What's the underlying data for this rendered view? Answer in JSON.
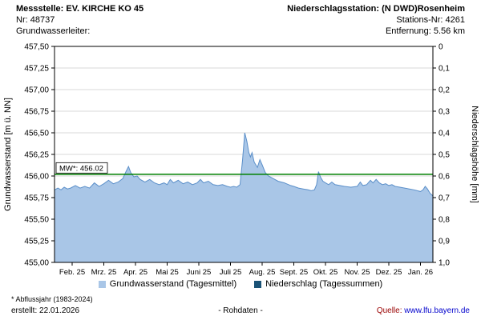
{
  "header": {
    "left": {
      "line1": "Messstelle: EV. KIRCHE KO 45",
      "line2": "Nr: 48737",
      "line3": "Grundwasserleiter:"
    },
    "right": {
      "line1": "Niederschlagsstation: (N DWD)Rosenheim",
      "line2": "Stations-Nr: 4261",
      "line3": "Entfernung: 5.56 km"
    }
  },
  "colors": {
    "area_fill": "#a9c6e7",
    "area_line": "#5b8fc9",
    "precipitation": "#1a5276",
    "mean_line": "#008000",
    "gridline": "#d8d8d8",
    "source_label": "#990000",
    "link": "#0000cc"
  },
  "chart_data": {
    "type": "area",
    "title": "",
    "ylabel_left": "Grundwasserstand [m ü. NN]",
    "ylabel_right": "Niederschlagshöhe [mm]",
    "ylim_left": [
      455.0,
      457.5
    ],
    "ylim_right_inverted": [
      0,
      1.0
    ],
    "grid": true,
    "legend_position": "bottom",
    "left_ticks": [
      "457,50",
      "457,25",
      "457,00",
      "456,75",
      "456,50",
      "456,25",
      "456,00",
      "455,75",
      "455,50",
      "455,25",
      "455,00"
    ],
    "right_ticks": [
      "0",
      "0,1",
      "0,2",
      "0,3",
      "0,4",
      "0,5",
      "0,6",
      "0,7",
      "0,8",
      "0,9",
      "1,0"
    ],
    "x_ticks": [
      "Feb. 25",
      "Mrz. 25",
      "Apr. 25",
      "Mai 25",
      "Juni 25",
      "Juli 25",
      "Aug. 25",
      "Sept. 25",
      "Okt. 25",
      "Nov. 25",
      "Dez. 25",
      "Jan. 26"
    ],
    "x_unit": "month ticks, 0 = Feb. 25",
    "reference_line": {
      "label": "MW*: 456.02",
      "value": 456.02
    },
    "series": [
      {
        "name": "Grundwasserstand (Tagesmittel)",
        "points": [
          [
            -0.55,
            455.84
          ],
          [
            -0.45,
            455.86
          ],
          [
            -0.35,
            455.84
          ],
          [
            -0.25,
            455.87
          ],
          [
            -0.15,
            455.85
          ],
          [
            -0.05,
            455.86
          ],
          [
            0.1,
            455.89
          ],
          [
            0.25,
            455.86
          ],
          [
            0.4,
            455.88
          ],
          [
            0.55,
            455.86
          ],
          [
            0.7,
            455.92
          ],
          [
            0.85,
            455.88
          ],
          [
            1.0,
            455.91
          ],
          [
            1.15,
            455.95
          ],
          [
            1.3,
            455.91
          ],
          [
            1.45,
            455.93
          ],
          [
            1.6,
            455.97
          ],
          [
            1.7,
            456.05
          ],
          [
            1.78,
            456.11
          ],
          [
            1.85,
            456.04
          ],
          [
            1.95,
            455.99
          ],
          [
            2.05,
            456.0
          ],
          [
            2.15,
            455.96
          ],
          [
            2.3,
            455.93
          ],
          [
            2.45,
            455.96
          ],
          [
            2.6,
            455.92
          ],
          [
            2.75,
            455.9
          ],
          [
            2.9,
            455.92
          ],
          [
            3.0,
            455.9
          ],
          [
            3.1,
            455.96
          ],
          [
            3.2,
            455.92
          ],
          [
            3.35,
            455.95
          ],
          [
            3.5,
            455.91
          ],
          [
            3.65,
            455.93
          ],
          [
            3.8,
            455.9
          ],
          [
            3.95,
            455.92
          ],
          [
            4.05,
            455.96
          ],
          [
            4.15,
            455.92
          ],
          [
            4.3,
            455.94
          ],
          [
            4.45,
            455.9
          ],
          [
            4.6,
            455.89
          ],
          [
            4.75,
            455.9
          ],
          [
            4.9,
            455.88
          ],
          [
            5.0,
            455.87
          ],
          [
            5.1,
            455.88
          ],
          [
            5.2,
            455.87
          ],
          [
            5.3,
            455.9
          ],
          [
            5.38,
            456.18
          ],
          [
            5.45,
            456.5
          ],
          [
            5.52,
            456.4
          ],
          [
            5.58,
            456.27
          ],
          [
            5.63,
            456.22
          ],
          [
            5.68,
            456.27
          ],
          [
            5.75,
            456.16
          ],
          [
            5.85,
            456.1
          ],
          [
            5.93,
            456.19
          ],
          [
            6.0,
            456.13
          ],
          [
            6.1,
            456.04
          ],
          [
            6.2,
            456.0
          ],
          [
            6.35,
            455.97
          ],
          [
            6.5,
            455.94
          ],
          [
            6.7,
            455.92
          ],
          [
            6.9,
            455.89
          ],
          [
            7.0,
            455.88
          ],
          [
            7.15,
            455.86
          ],
          [
            7.3,
            455.85
          ],
          [
            7.45,
            455.84
          ],
          [
            7.55,
            455.83
          ],
          [
            7.65,
            455.84
          ],
          [
            7.72,
            455.9
          ],
          [
            7.78,
            456.05
          ],
          [
            7.84,
            455.99
          ],
          [
            7.92,
            455.94
          ],
          [
            8.0,
            455.92
          ],
          [
            8.1,
            455.9
          ],
          [
            8.2,
            455.93
          ],
          [
            8.3,
            455.9
          ],
          [
            8.45,
            455.89
          ],
          [
            8.6,
            455.88
          ],
          [
            8.8,
            455.87
          ],
          [
            9.0,
            455.88
          ],
          [
            9.1,
            455.93
          ],
          [
            9.18,
            455.89
          ],
          [
            9.3,
            455.9
          ],
          [
            9.42,
            455.95
          ],
          [
            9.5,
            455.92
          ],
          [
            9.6,
            455.96
          ],
          [
            9.7,
            455.92
          ],
          [
            9.8,
            455.9
          ],
          [
            9.9,
            455.91
          ],
          [
            10.0,
            455.89
          ],
          [
            10.1,
            455.9
          ],
          [
            10.2,
            455.88
          ],
          [
            10.35,
            455.87
          ],
          [
            10.5,
            455.86
          ],
          [
            10.65,
            455.85
          ],
          [
            10.8,
            455.84
          ],
          [
            10.9,
            455.83
          ],
          [
            11.0,
            455.82
          ],
          [
            11.08,
            455.84
          ],
          [
            11.15,
            455.88
          ],
          [
            11.22,
            455.85
          ],
          [
            11.3,
            455.8
          ],
          [
            11.39,
            455.77
          ]
        ]
      },
      {
        "name": "Niederschlag (Tagessummen)",
        "points": []
      }
    ]
  },
  "footer": {
    "note": "* Abflussjahr (1983-2024)",
    "created": "erstellt:  22.01.2026",
    "center": "- Rohdaten -",
    "source_label": "Quelle:",
    "source_link": "www.lfu.bayern.de"
  }
}
